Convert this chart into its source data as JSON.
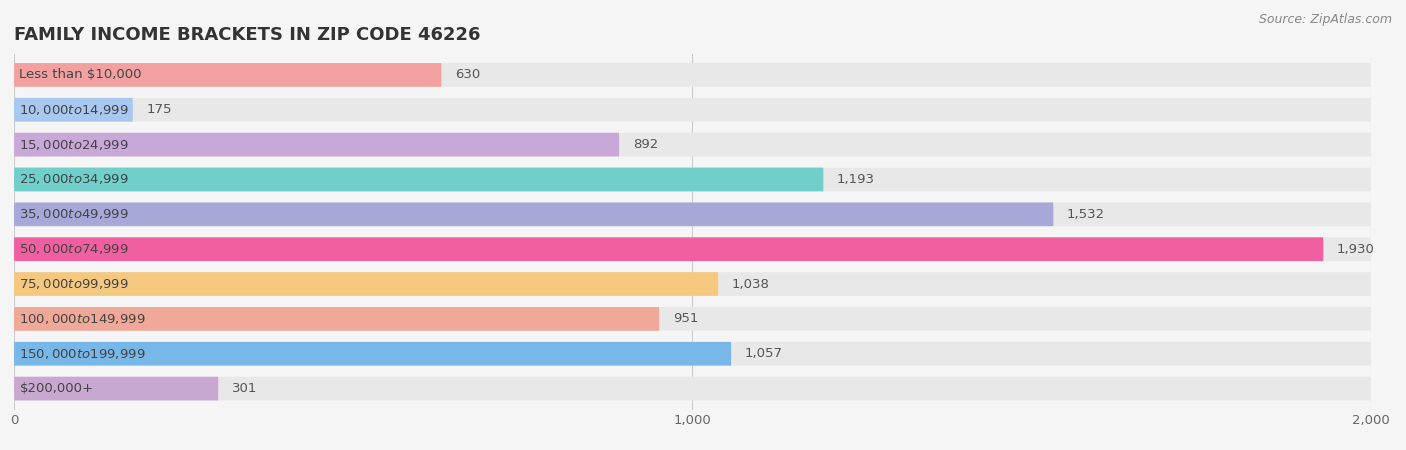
{
  "title": "FAMILY INCOME BRACKETS IN ZIP CODE 46226",
  "source": "Source: ZipAtlas.com",
  "categories": [
    "Less than $10,000",
    "$10,000 to $14,999",
    "$15,000 to $24,999",
    "$25,000 to $34,999",
    "$35,000 to $49,999",
    "$50,000 to $74,999",
    "$75,000 to $99,999",
    "$100,000 to $149,999",
    "$150,000 to $199,999",
    "$200,000+"
  ],
  "values": [
    630,
    175,
    892,
    1193,
    1532,
    1930,
    1038,
    951,
    1057,
    301
  ],
  "bar_colors": [
    "#F2A0A0",
    "#A8C8F0",
    "#C8A8D8",
    "#70CFCA",
    "#A8A8D8",
    "#F060A0",
    "#F5C880",
    "#F0A898",
    "#78B8E8",
    "#C8A8D0"
  ],
  "xlim_min": 0,
  "xlim_max": 2000,
  "xticks": [
    0,
    1000,
    2000
  ],
  "background_color": "#f5f5f5",
  "bar_bg_color": "#e8e8e8",
  "title_fontsize": 13,
  "label_fontsize": 9.5,
  "value_fontsize": 9.5,
  "source_fontsize": 9
}
